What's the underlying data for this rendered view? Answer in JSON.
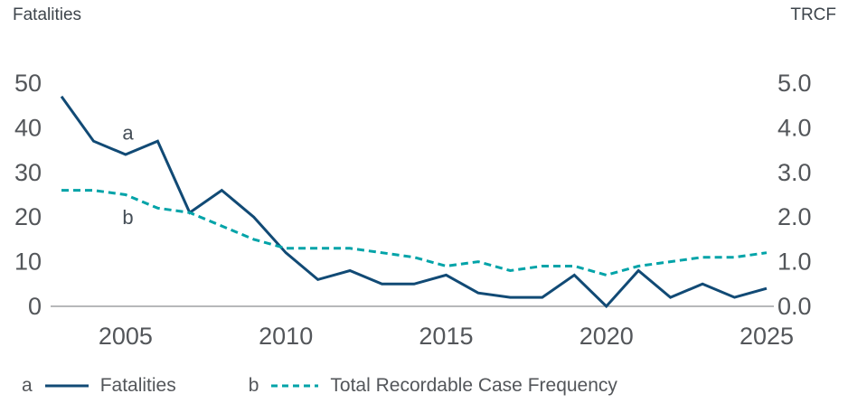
{
  "chart_data": {
    "type": "line",
    "title": "",
    "grid": false,
    "legend_position": "bottom",
    "left_axis": {
      "title": "Fatalities",
      "ticks": [
        50,
        40,
        30,
        20,
        10,
        0
      ],
      "range": [
        0,
        50
      ]
    },
    "right_axis": {
      "title": "TRCF",
      "ticks": [
        "5.0",
        "4.0",
        "3.0",
        "2.0",
        "1.0",
        "0.0"
      ],
      "range": [
        0,
        5
      ]
    },
    "x": [
      2003,
      2004,
      2005,
      2006,
      2007,
      2008,
      2009,
      2010,
      2011,
      2012,
      2013,
      2014,
      2015,
      2016,
      2017,
      2018,
      2019,
      2020,
      2021,
      2022,
      2023,
      2024,
      2025
    ],
    "x_tick_labels": [
      "2005",
      "2010",
      "2015",
      "2020",
      "2025"
    ],
    "series": [
      {
        "id": "a",
        "name": "Fatalities",
        "axis": "left",
        "style": "solid",
        "color": "#114a75",
        "values": [
          47,
          37,
          34,
          37,
          21,
          26,
          20,
          12,
          6,
          8,
          5,
          5,
          7,
          3,
          2,
          2,
          7,
          0,
          8,
          2,
          5,
          2,
          4
        ]
      },
      {
        "id": "b",
        "name": "Total Recordable Case Frequency",
        "axis": "right",
        "style": "dashed",
        "color": "#00a3a8",
        "values": [
          2.6,
          2.6,
          2.5,
          2.2,
          2.1,
          1.8,
          1.5,
          1.3,
          1.3,
          1.3,
          1.2,
          1.1,
          0.9,
          1.0,
          0.8,
          0.9,
          0.9,
          0.7,
          0.9,
          1.0,
          1.1,
          1.1,
          1.2
        ]
      }
    ],
    "annotations": [
      {
        "text": "a",
        "axis": "left",
        "x_year": 2004.9,
        "value": 39
      },
      {
        "text": "b",
        "axis": "right",
        "x_year": 2004.9,
        "value": 2.0
      }
    ]
  },
  "colors": {
    "axis_text": "#53565a",
    "annotation_text": "#454e57",
    "baseline": "#9fa1a4"
  }
}
